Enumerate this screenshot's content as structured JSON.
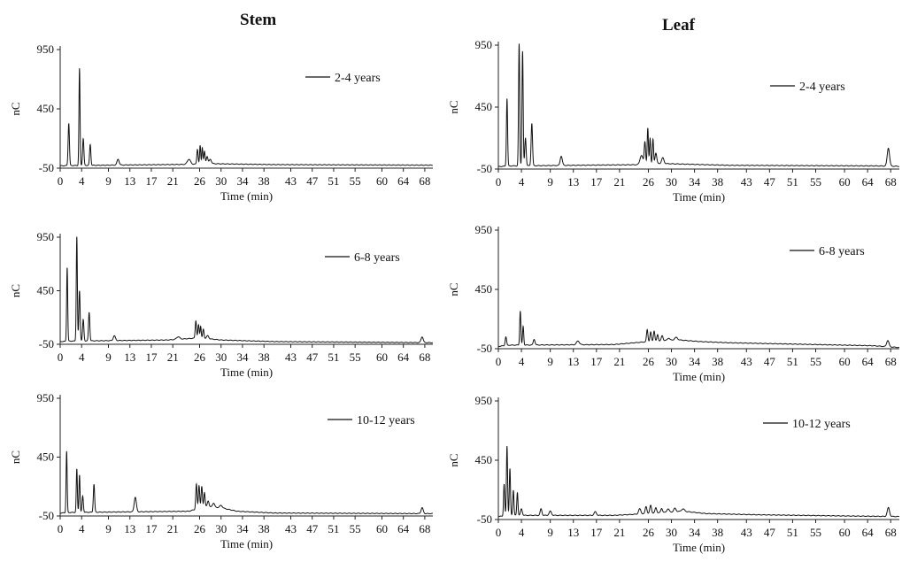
{
  "columns": [
    {
      "title": "Stem"
    },
    {
      "title": "Leaf"
    }
  ],
  "chart_data": [
    {
      "type": "line",
      "panel": "stem-2-4-years",
      "ylabel": "nC",
      "xlabel": "Time (min)",
      "legend": "2-4 years",
      "legend_position": "top-right",
      "ylim": [
        -50,
        950
      ],
      "yticks": [
        "950",
        "450",
        "-50"
      ],
      "xticks": [
        "0",
        "4",
        "9",
        "13",
        "17",
        "21",
        "26",
        "30",
        "34",
        "38",
        "43",
        "47",
        "51",
        "55",
        "60",
        "64",
        "68"
      ],
      "xlim": [
        0,
        69.5
      ],
      "baseline": [
        [
          0,
          -30
        ],
        [
          1.8,
          -28
        ],
        [
          24,
          -18
        ],
        [
          28,
          -12
        ],
        [
          32,
          -15
        ],
        [
          40,
          -20
        ],
        [
          69.5,
          -25
        ]
      ],
      "peaks": [
        [
          1.6,
          330,
          0.12
        ],
        [
          3.6,
          790,
          0.1
        ],
        [
          4.3,
          200,
          0.12
        ],
        [
          5.6,
          150,
          0.12
        ],
        [
          10.8,
          25,
          0.2
        ],
        [
          24.0,
          25,
          0.3
        ],
        [
          25.6,
          110,
          0.12
        ],
        [
          26.1,
          140,
          0.1
        ],
        [
          26.5,
          125,
          0.1
        ],
        [
          26.9,
          90,
          0.12
        ],
        [
          27.4,
          50,
          0.15
        ],
        [
          28.0,
          25,
          0.2
        ]
      ]
    },
    {
      "type": "line",
      "panel": "leaf-2-4-years",
      "ylabel": "nC",
      "xlabel": "Time (min)",
      "legend": "2-4 years",
      "legend_position": "top-right",
      "ylim": [
        -50,
        950
      ],
      "yticks": [
        "950",
        "450",
        "-50"
      ],
      "xticks": [
        "0",
        "4",
        "9",
        "13",
        "17",
        "21",
        "26",
        "30",
        "34",
        "38",
        "43",
        "47",
        "51",
        "55",
        "60",
        "64",
        "68"
      ],
      "xlim": [
        0,
        69.5
      ],
      "baseline": [
        [
          0,
          -30
        ],
        [
          2,
          -25
        ],
        [
          24,
          -15
        ],
        [
          28,
          -5
        ],
        [
          32,
          -10
        ],
        [
          40,
          -20
        ],
        [
          66,
          -25
        ],
        [
          69.5,
          -28
        ]
      ],
      "peaks": [
        [
          1.5,
          520,
          0.1
        ],
        [
          3.6,
          960,
          0.1
        ],
        [
          4.2,
          900,
          0.1
        ],
        [
          4.7,
          200,
          0.12
        ],
        [
          5.8,
          320,
          0.12
        ],
        [
          10.9,
          55,
          0.18
        ],
        [
          24.8,
          60,
          0.25
        ],
        [
          25.4,
          170,
          0.12
        ],
        [
          25.9,
          280,
          0.1
        ],
        [
          26.3,
          200,
          0.1
        ],
        [
          26.8,
          190,
          0.1
        ],
        [
          27.3,
          80,
          0.15
        ],
        [
          28.5,
          40,
          0.2
        ],
        [
          67.6,
          120,
          0.2
        ]
      ]
    },
    {
      "type": "line",
      "panel": "stem-6-8-years",
      "ylabel": "nC",
      "xlabel": "Time (min)",
      "legend": "6-8 years",
      "legend_position": "top-right",
      "ylim": [
        -50,
        950
      ],
      "yticks": [
        "950",
        "450",
        "-50"
      ],
      "xticks": [
        "0",
        "4",
        "9",
        "13",
        "17",
        "21",
        "26",
        "30",
        "34",
        "38",
        "43",
        "47",
        "51",
        "55",
        "60",
        "64",
        "68"
      ],
      "xlim": [
        0,
        69.5
      ],
      "baseline": [
        [
          0,
          -25
        ],
        [
          2,
          -20
        ],
        [
          20,
          -10
        ],
        [
          26,
          10
        ],
        [
          30,
          -10
        ],
        [
          40,
          -25
        ],
        [
          69.5,
          -35
        ]
      ],
      "peaks": [
        [
          1.3,
          670,
          0.1
        ],
        [
          3.1,
          960,
          0.1
        ],
        [
          3.6,
          450,
          0.12
        ],
        [
          4.3,
          180,
          0.12
        ],
        [
          5.4,
          250,
          0.12
        ],
        [
          10.1,
          30,
          0.2
        ],
        [
          22.0,
          20,
          0.3
        ],
        [
          25.3,
          170,
          0.12
        ],
        [
          25.8,
          130,
          0.12
        ],
        [
          26.2,
          120,
          0.1
        ],
        [
          26.7,
          90,
          0.12
        ],
        [
          27.5,
          30,
          0.2
        ],
        [
          67.5,
          20,
          0.2
        ]
      ]
    },
    {
      "type": "line",
      "panel": "leaf-6-8-years",
      "ylabel": "nC",
      "xlabel": "Time (min)",
      "legend": "6-8 years",
      "legend_position": "top-right",
      "ylim": [
        -50,
        950
      ],
      "yticks": [
        "950",
        "450",
        "-50"
      ],
      "xticks": [
        "0",
        "4",
        "9",
        "13",
        "17",
        "21",
        "26",
        "30",
        "34",
        "38",
        "43",
        "47",
        "51",
        "55",
        "60",
        "64",
        "68"
      ],
      "xlim": [
        0,
        69.5
      ],
      "baseline": [
        [
          0,
          -30
        ],
        [
          2,
          -20
        ],
        [
          20,
          -15
        ],
        [
          26,
          10
        ],
        [
          31,
          25
        ],
        [
          35,
          10
        ],
        [
          40,
          0
        ],
        [
          55,
          -15
        ],
        [
          65,
          -25
        ],
        [
          69.5,
          -40
        ]
      ],
      "peaks": [
        [
          1.3,
          50,
          0.12
        ],
        [
          3.8,
          270,
          0.1
        ],
        [
          4.3,
          140,
          0.1
        ],
        [
          6.2,
          30,
          0.15
        ],
        [
          13.8,
          15,
          0.25
        ],
        [
          25.8,
          110,
          0.12
        ],
        [
          26.4,
          90,
          0.12
        ],
        [
          27.0,
          100,
          0.12
        ],
        [
          27.6,
          70,
          0.12
        ],
        [
          28.4,
          60,
          0.15
        ],
        [
          29.5,
          40,
          0.2
        ],
        [
          30.8,
          45,
          0.25
        ],
        [
          67.5,
          20,
          0.2
        ]
      ]
    },
    {
      "type": "line",
      "panel": "stem-10-12-years",
      "ylabel": "nC",
      "xlabel": "Time (min)",
      "legend": "10-12 years",
      "legend_position": "top-right",
      "ylim": [
        -50,
        950
      ],
      "yticks": [
        "950",
        "450",
        "-50"
      ],
      "xticks": [
        "0",
        "4",
        "9",
        "13",
        "17",
        "21",
        "26",
        "30",
        "34",
        "38",
        "43",
        "47",
        "51",
        "55",
        "60",
        "64",
        "68"
      ],
      "xlim": [
        0,
        69.5
      ],
      "baseline": [
        [
          0,
          -25
        ],
        [
          2,
          -20
        ],
        [
          24,
          -10
        ],
        [
          27,
          30
        ],
        [
          30,
          20
        ],
        [
          33,
          -10
        ],
        [
          40,
          -25
        ],
        [
          69.5,
          -30
        ]
      ],
      "peaks": [
        [
          1.2,
          500,
          0.1
        ],
        [
          3.1,
          350,
          0.1
        ],
        [
          3.6,
          300,
          0.1
        ],
        [
          4.2,
          120,
          0.12
        ],
        [
          6.3,
          220,
          0.12
        ],
        [
          14.0,
          110,
          0.2
        ],
        [
          25.4,
          220,
          0.12
        ],
        [
          25.9,
          210,
          0.12
        ],
        [
          26.4,
          200,
          0.12
        ],
        [
          26.9,
          150,
          0.12
        ],
        [
          27.6,
          80,
          0.15
        ],
        [
          28.6,
          60,
          0.2
        ],
        [
          30.0,
          40,
          0.25
        ],
        [
          67.5,
          20,
          0.2
        ]
      ]
    },
    {
      "type": "line",
      "panel": "leaf-10-12-years",
      "ylabel": "nC",
      "xlabel": "Time (min)",
      "legend": "10-12 years",
      "legend_position": "top-right",
      "ylim": [
        -50,
        950
      ],
      "yticks": [
        "950",
        "450",
        "-50"
      ],
      "xticks": [
        "0",
        "4",
        "9",
        "13",
        "17",
        "21",
        "26",
        "30",
        "34",
        "38",
        "43",
        "47",
        "51",
        "55",
        "60",
        "64",
        "68"
      ],
      "xlim": [
        0,
        69.5
      ],
      "baseline": [
        [
          0,
          -25
        ],
        [
          2,
          -15
        ],
        [
          20,
          -15
        ],
        [
          26,
          0
        ],
        [
          32,
          20
        ],
        [
          36,
          0
        ],
        [
          45,
          -10
        ],
        [
          60,
          -20
        ],
        [
          69.5,
          -25
        ]
      ],
      "peaks": [
        [
          1.0,
          250,
          0.1
        ],
        [
          1.5,
          570,
          0.1
        ],
        [
          2.0,
          380,
          0.1
        ],
        [
          2.6,
          200,
          0.1
        ],
        [
          3.3,
          180,
          0.1
        ],
        [
          4.0,
          40,
          0.15
        ],
        [
          7.4,
          40,
          0.15
        ],
        [
          9.0,
          20,
          0.2
        ],
        [
          16.8,
          15,
          0.2
        ],
        [
          24.5,
          40,
          0.2
        ],
        [
          25.6,
          60,
          0.15
        ],
        [
          26.4,
          70,
          0.15
        ],
        [
          27.3,
          50,
          0.15
        ],
        [
          28.3,
          45,
          0.15
        ],
        [
          29.4,
          40,
          0.2
        ],
        [
          30.6,
          45,
          0.2
        ],
        [
          32.0,
          40,
          0.25
        ],
        [
          67.6,
          50,
          0.2
        ]
      ]
    }
  ]
}
